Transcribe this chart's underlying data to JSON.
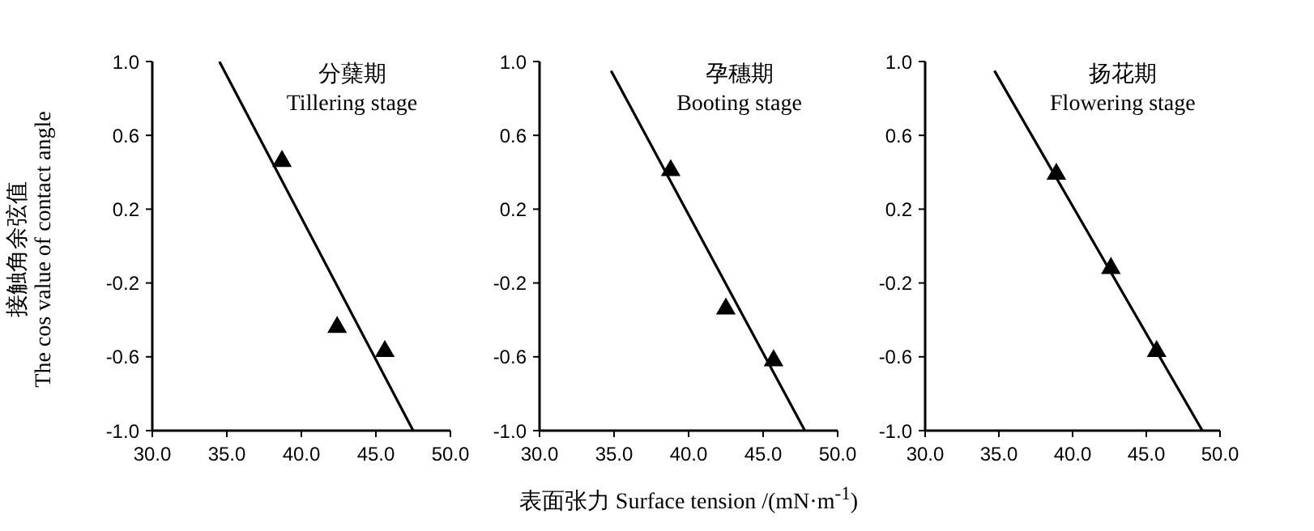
{
  "chart_data": [
    {
      "type": "scatter",
      "title": "分蘖期\nTillering stage",
      "ylabel": "接触角余弦值\nThe cos value of contact angle",
      "xlim": [
        30,
        50
      ],
      "ylim": [
        -1,
        1
      ],
      "xticks": [
        {
          "value": 30,
          "label": "30.0"
        },
        {
          "value": 35,
          "label": "35.0"
        },
        {
          "value": 40,
          "label": "40.0"
        },
        {
          "value": 45,
          "label": "45.0"
        },
        {
          "value": 50,
          "label": "50.0"
        }
      ],
      "yticks": [
        {
          "value": -1,
          "label": "-1.0"
        },
        {
          "value": -0.6,
          "label": "-0.6"
        },
        {
          "value": -0.2,
          "label": "-0.2"
        },
        {
          "value": 0.2,
          "label": "0.2"
        },
        {
          "value": 0.6,
          "label": "0.6"
        },
        {
          "value": 1,
          "label": "1.0"
        }
      ],
      "grid": false,
      "series": [
        {
          "color": "#000000",
          "marker": "triangle",
          "x": [
            38.7,
            42.4,
            45.6
          ],
          "values": [
            0.46,
            -0.44,
            -0.57
          ]
        },
        {
          "type": "line",
          "color": "#000000",
          "marker": "none",
          "x": [
            34.5,
            47.5
          ],
          "values": [
            1.0,
            -1.0
          ]
        }
      ]
    },
    {
      "type": "scatter",
      "title": "孕穗期\nBooting stage",
      "xlabel": "表面张力 Surface tension /(mN·m$^{-1}$)",
      "xlim": [
        30,
        50
      ],
      "ylim": [
        -1,
        1
      ],
      "xticks": [
        {
          "value": 30,
          "label": "30.0"
        },
        {
          "value": 35,
          "label": "35.0"
        },
        {
          "value": 40,
          "label": "40.0"
        },
        {
          "value": 45,
          "label": "45.0"
        },
        {
          "value": 50,
          "label": "50.0"
        }
      ],
      "yticks": [
        {
          "value": -1,
          "label": "-1.0"
        },
        {
          "value": -0.6,
          "label": "-0.6"
        },
        {
          "value": -0.2,
          "label": "-0.2"
        },
        {
          "value": 0.2,
          "label": "0.2"
        },
        {
          "value": 0.6,
          "label": "0.6"
        },
        {
          "value": 1,
          "label": "1.0"
        }
      ],
      "grid": false,
      "series": [
        {
          "color": "#000000",
          "marker": "triangle",
          "x": [
            38.8,
            42.5,
            45.7
          ],
          "values": [
            0.41,
            -0.34,
            -0.62
          ]
        },
        {
          "type": "line",
          "color": "#000000",
          "marker": "none",
          "x": [
            34.8,
            47.8
          ],
          "values": [
            0.95,
            -1.0
          ]
        }
      ]
    },
    {
      "type": "scatter",
      "title": "扬花期\nFlowering stage",
      "xlim": [
        30,
        50
      ],
      "ylim": [
        -1,
        1
      ],
      "xticks": [
        {
          "value": 30,
          "label": "30.0"
        },
        {
          "value": 35,
          "label": "35.0"
        },
        {
          "value": 40,
          "label": "40.0"
        },
        {
          "value": 45,
          "label": "45.0"
        },
        {
          "value": 50,
          "label": "50.0"
        }
      ],
      "yticks": [
        {
          "value": -1,
          "label": "-1.0"
        },
        {
          "value": -0.6,
          "label": "-0.6"
        },
        {
          "value": -0.2,
          "label": "-0.2"
        },
        {
          "value": 0.2,
          "label": "0.2"
        },
        {
          "value": 0.6,
          "label": "0.6"
        },
        {
          "value": 1,
          "label": "1.0"
        }
      ],
      "grid": false,
      "series": [
        {
          "color": "#000000",
          "marker": "triangle",
          "x": [
            38.9,
            42.6,
            45.7
          ],
          "values": [
            0.39,
            -0.12,
            -0.57
          ]
        },
        {
          "type": "line",
          "color": "#000000",
          "marker": "none",
          "x": [
            34.7,
            48.8
          ],
          "values": [
            0.95,
            -1.0
          ]
        }
      ]
    }
  ]
}
